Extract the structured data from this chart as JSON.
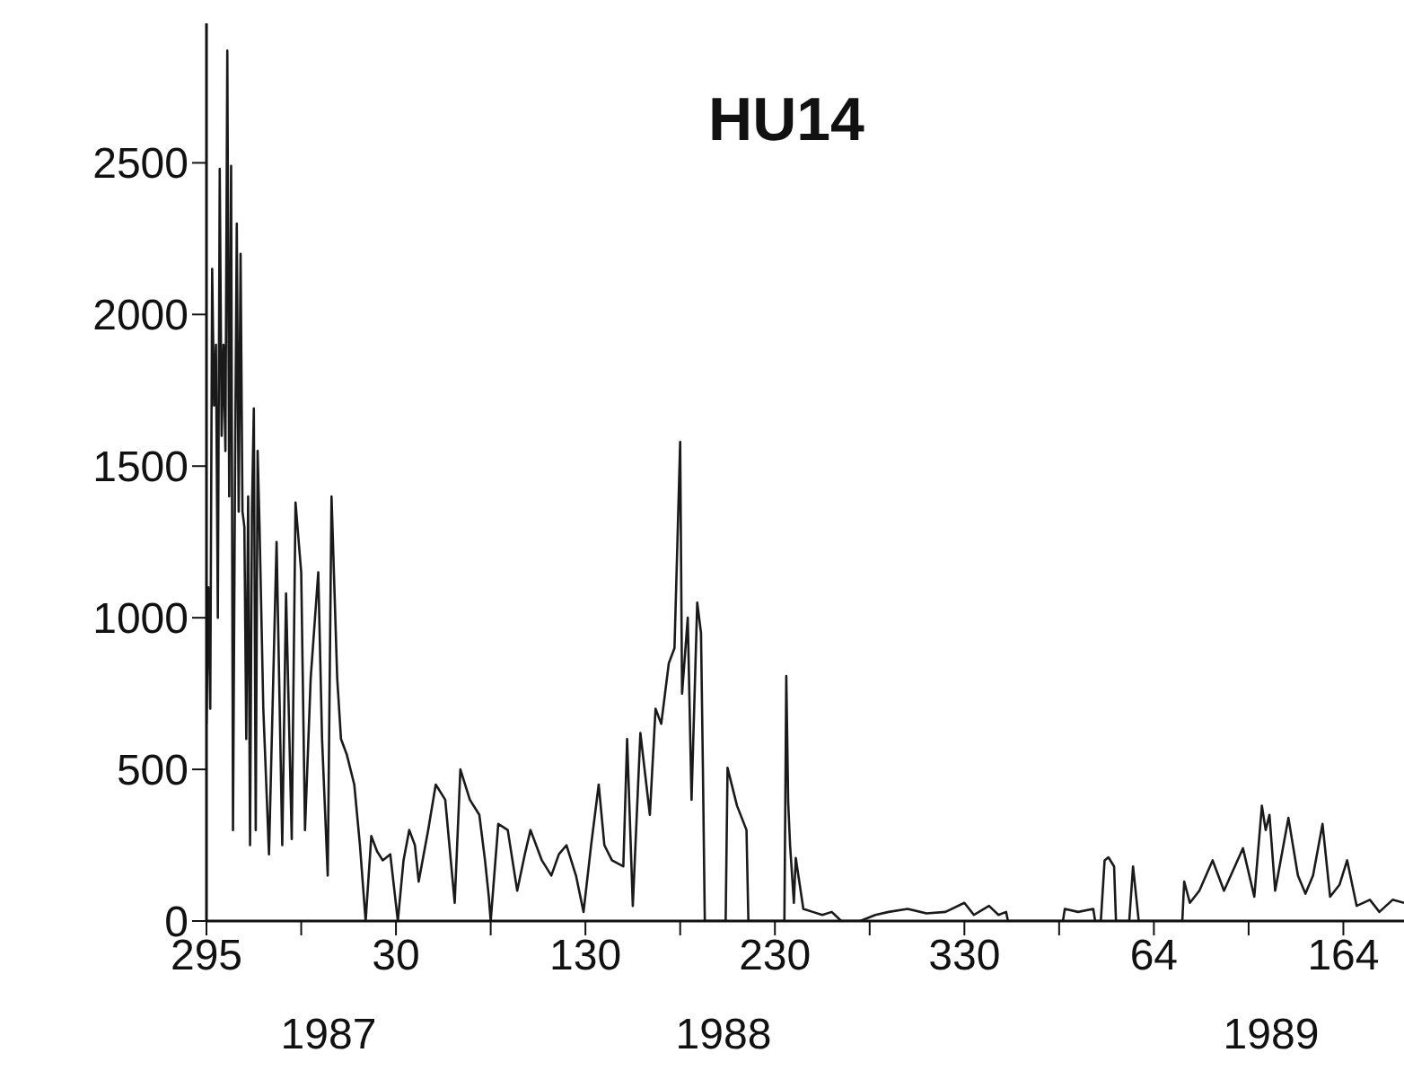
{
  "chart_data": {
    "type": "line",
    "title": "HU14",
    "annotations": [
      "1987",
      "1988",
      "1989"
    ],
    "x": [
      "1987-10-22",
      "1987-10-23",
      "1987-10-24",
      "1987-10-25",
      "1987-10-26",
      "1987-10-27",
      "1987-10-28",
      "1987-10-29",
      "1987-10-30",
      "1987-10-31",
      "1987-11-01",
      "1987-11-02",
      "1987-11-03",
      "1987-11-04",
      "1987-11-05",
      "1987-11-06",
      "1987-11-07",
      "1987-11-08",
      "1987-11-09",
      "1987-11-10",
      "1987-11-11",
      "1987-11-12",
      "1987-11-13",
      "1987-11-14",
      "1987-11-15",
      "1987-11-16",
      "1987-11-17",
      "1987-11-18",
      "1987-11-19",
      "1987-11-21",
      "1987-11-24",
      "1987-11-28",
      "1987-12-01",
      "1987-12-03",
      "1987-12-06",
      "1987-12-08",
      "1987-12-11",
      "1987-12-13",
      "1987-12-16",
      "1987-12-20",
      "1987-12-22",
      "1987-12-25",
      "1987-12-27",
      "1987-12-30",
      "1988-01-01",
      "1988-01-04",
      "1988-01-08",
      "1988-01-11",
      "1988-01-14",
      "1988-01-17",
      "1988-01-20",
      "1988-01-23",
      "1988-01-27",
      "1988-01-31",
      "1988-02-03",
      "1988-02-06",
      "1988-02-09",
      "1988-02-11",
      "1988-02-16",
      "1988-02-20",
      "1988-02-25",
      "1988-03-01",
      "1988-03-04",
      "1988-03-09",
      "1988-03-14",
      "1988-03-17",
      "1988-03-19",
      "1988-03-20",
      "1988-03-24",
      "1988-03-29",
      "1988-04-03",
      "1988-04-07",
      "1988-04-10",
      "1988-04-16",
      "1988-04-21",
      "1988-04-25",
      "1988-04-29",
      "1988-05-04",
      "1988-05-08",
      "1988-05-12",
      "1988-05-16",
      "1988-05-19",
      "1988-05-23",
      "1988-05-29",
      "1988-05-31",
      "1988-06-03",
      "1988-06-07",
      "1988-06-12",
      "1988-06-15",
      "1988-06-18",
      "1988-06-22",
      "1988-06-25",
      "1988-06-28",
      "1988-06-29",
      "1988-07-02",
      "1988-07-04",
      "1988-07-07",
      "1988-07-09",
      "1988-07-10",
      "1988-07-11",
      "1988-07-22",
      "1988-07-23",
      "1988-07-28",
      "1988-08-02",
      "1988-08-03",
      "1988-08-22",
      "1988-08-23",
      "1988-08-24",
      "1988-08-25",
      "1988-08-27",
      "1988-08-28",
      "1988-09-01",
      "1988-09-06",
      "1988-09-11",
      "1988-09-16",
      "1988-09-21",
      "1988-10-01",
      "1988-10-09",
      "1988-10-16",
      "1988-10-26",
      "1988-11-05",
      "1988-11-15",
      "1988-11-25",
      "1988-11-30",
      "1988-12-08",
      "1988-12-13",
      "1988-12-17",
      "1988-12-18",
      "1989-01-16",
      "1989-01-17",
      "1989-01-24",
      "1989-02-01",
      "1989-02-02",
      "1989-02-05",
      "1989-02-07",
      "1989-02-09",
      "1989-02-12",
      "1989-02-13",
      "1989-02-20",
      "1989-02-22",
      "1989-02-25",
      "1989-03-20",
      "1989-03-21",
      "1989-03-24",
      "1989-03-29",
      "1989-04-05",
      "1989-04-11",
      "1989-04-21",
      "1989-04-27",
      "1989-05-01",
      "1989-05-03",
      "1989-05-05",
      "1989-05-08",
      "1989-05-15",
      "1989-05-20",
      "1989-05-24",
      "1989-05-28",
      "1989-06-02",
      "1989-06-06",
      "1989-06-11",
      "1989-06-15",
      "1989-06-20",
      "1989-06-27",
      "1989-07-02",
      "1989-07-09",
      "1989-07-15"
    ],
    "values": [
      650,
      1100,
      700,
      2150,
      1700,
      1900,
      1000,
      2480,
      1600,
      1900,
      1550,
      2870,
      1400,
      2490,
      300,
      1400,
      2300,
      1350,
      2200,
      1350,
      1300,
      600,
      1400,
      250,
      1350,
      1690,
      300,
      1550,
      1300,
      700,
      220,
      1250,
      250,
      1080,
      270,
      1380,
      1150,
      300,
      800,
      1150,
      600,
      150,
      1400,
      800,
      600,
      550,
      450,
      250,
      0,
      280,
      230,
      200,
      220,
      0,
      200,
      300,
      250,
      130,
      300,
      450,
      400,
      60,
      500,
      400,
      350,
      200,
      80,
      0,
      320,
      300,
      100,
      220,
      300,
      200,
      150,
      220,
      250,
      150,
      30,
      250,
      450,
      250,
      200,
      180,
      600,
      50,
      620,
      350,
      700,
      650,
      850,
      900,
      1580,
      750,
      1000,
      400,
      1050,
      950,
      500,
      0,
      0,
      505,
      380,
      300,
      0,
      0,
      808,
      392,
      250,
      60,
      208,
      40,
      30,
      20,
      30,
      0,
      0,
      20,
      30,
      40,
      25,
      30,
      60,
      20,
      50,
      20,
      30,
      0,
      0,
      40,
      30,
      40,
      0,
      0,
      200,
      210,
      180,
      0,
      0,
      180,
      0,
      0,
      130,
      60,
      100,
      200,
      100,
      240,
      80,
      380,
      300,
      350,
      100,
      340,
      150,
      90,
      150,
      320,
      80,
      120,
      200,
      50,
      70,
      30,
      70,
      60
    ],
    "color": "#1a1a1a",
    "xlim": [
      "1987-10-22",
      "1989-07-15"
    ],
    "xticks": [
      {
        "value": "1987-10-22",
        "label": "295"
      },
      {
        "value": "1987-12-11",
        "label": null
      },
      {
        "value": "1988-01-30",
        "label": "30"
      },
      {
        "value": "1988-03-20",
        "label": null
      },
      {
        "value": "1988-05-09",
        "label": "130"
      },
      {
        "value": "1988-06-28",
        "label": null
      },
      {
        "value": "1988-08-17",
        "label": "230"
      },
      {
        "value": "1988-10-06",
        "label": null
      },
      {
        "value": "1988-11-25",
        "label": "330"
      },
      {
        "value": "1989-01-14",
        "label": null
      },
      {
        "value": "1989-03-05",
        "label": "64"
      },
      {
        "value": "1989-04-24",
        "label": null
      },
      {
        "value": "1989-06-13",
        "label": "164"
      }
    ],
    "ylim": [
      0,
      2960
    ],
    "yticks": [
      0,
      500,
      1000,
      1500,
      2000,
      2500
    ],
    "grid": false,
    "legend": false,
    "marker": "none",
    "line_style": "solid"
  }
}
